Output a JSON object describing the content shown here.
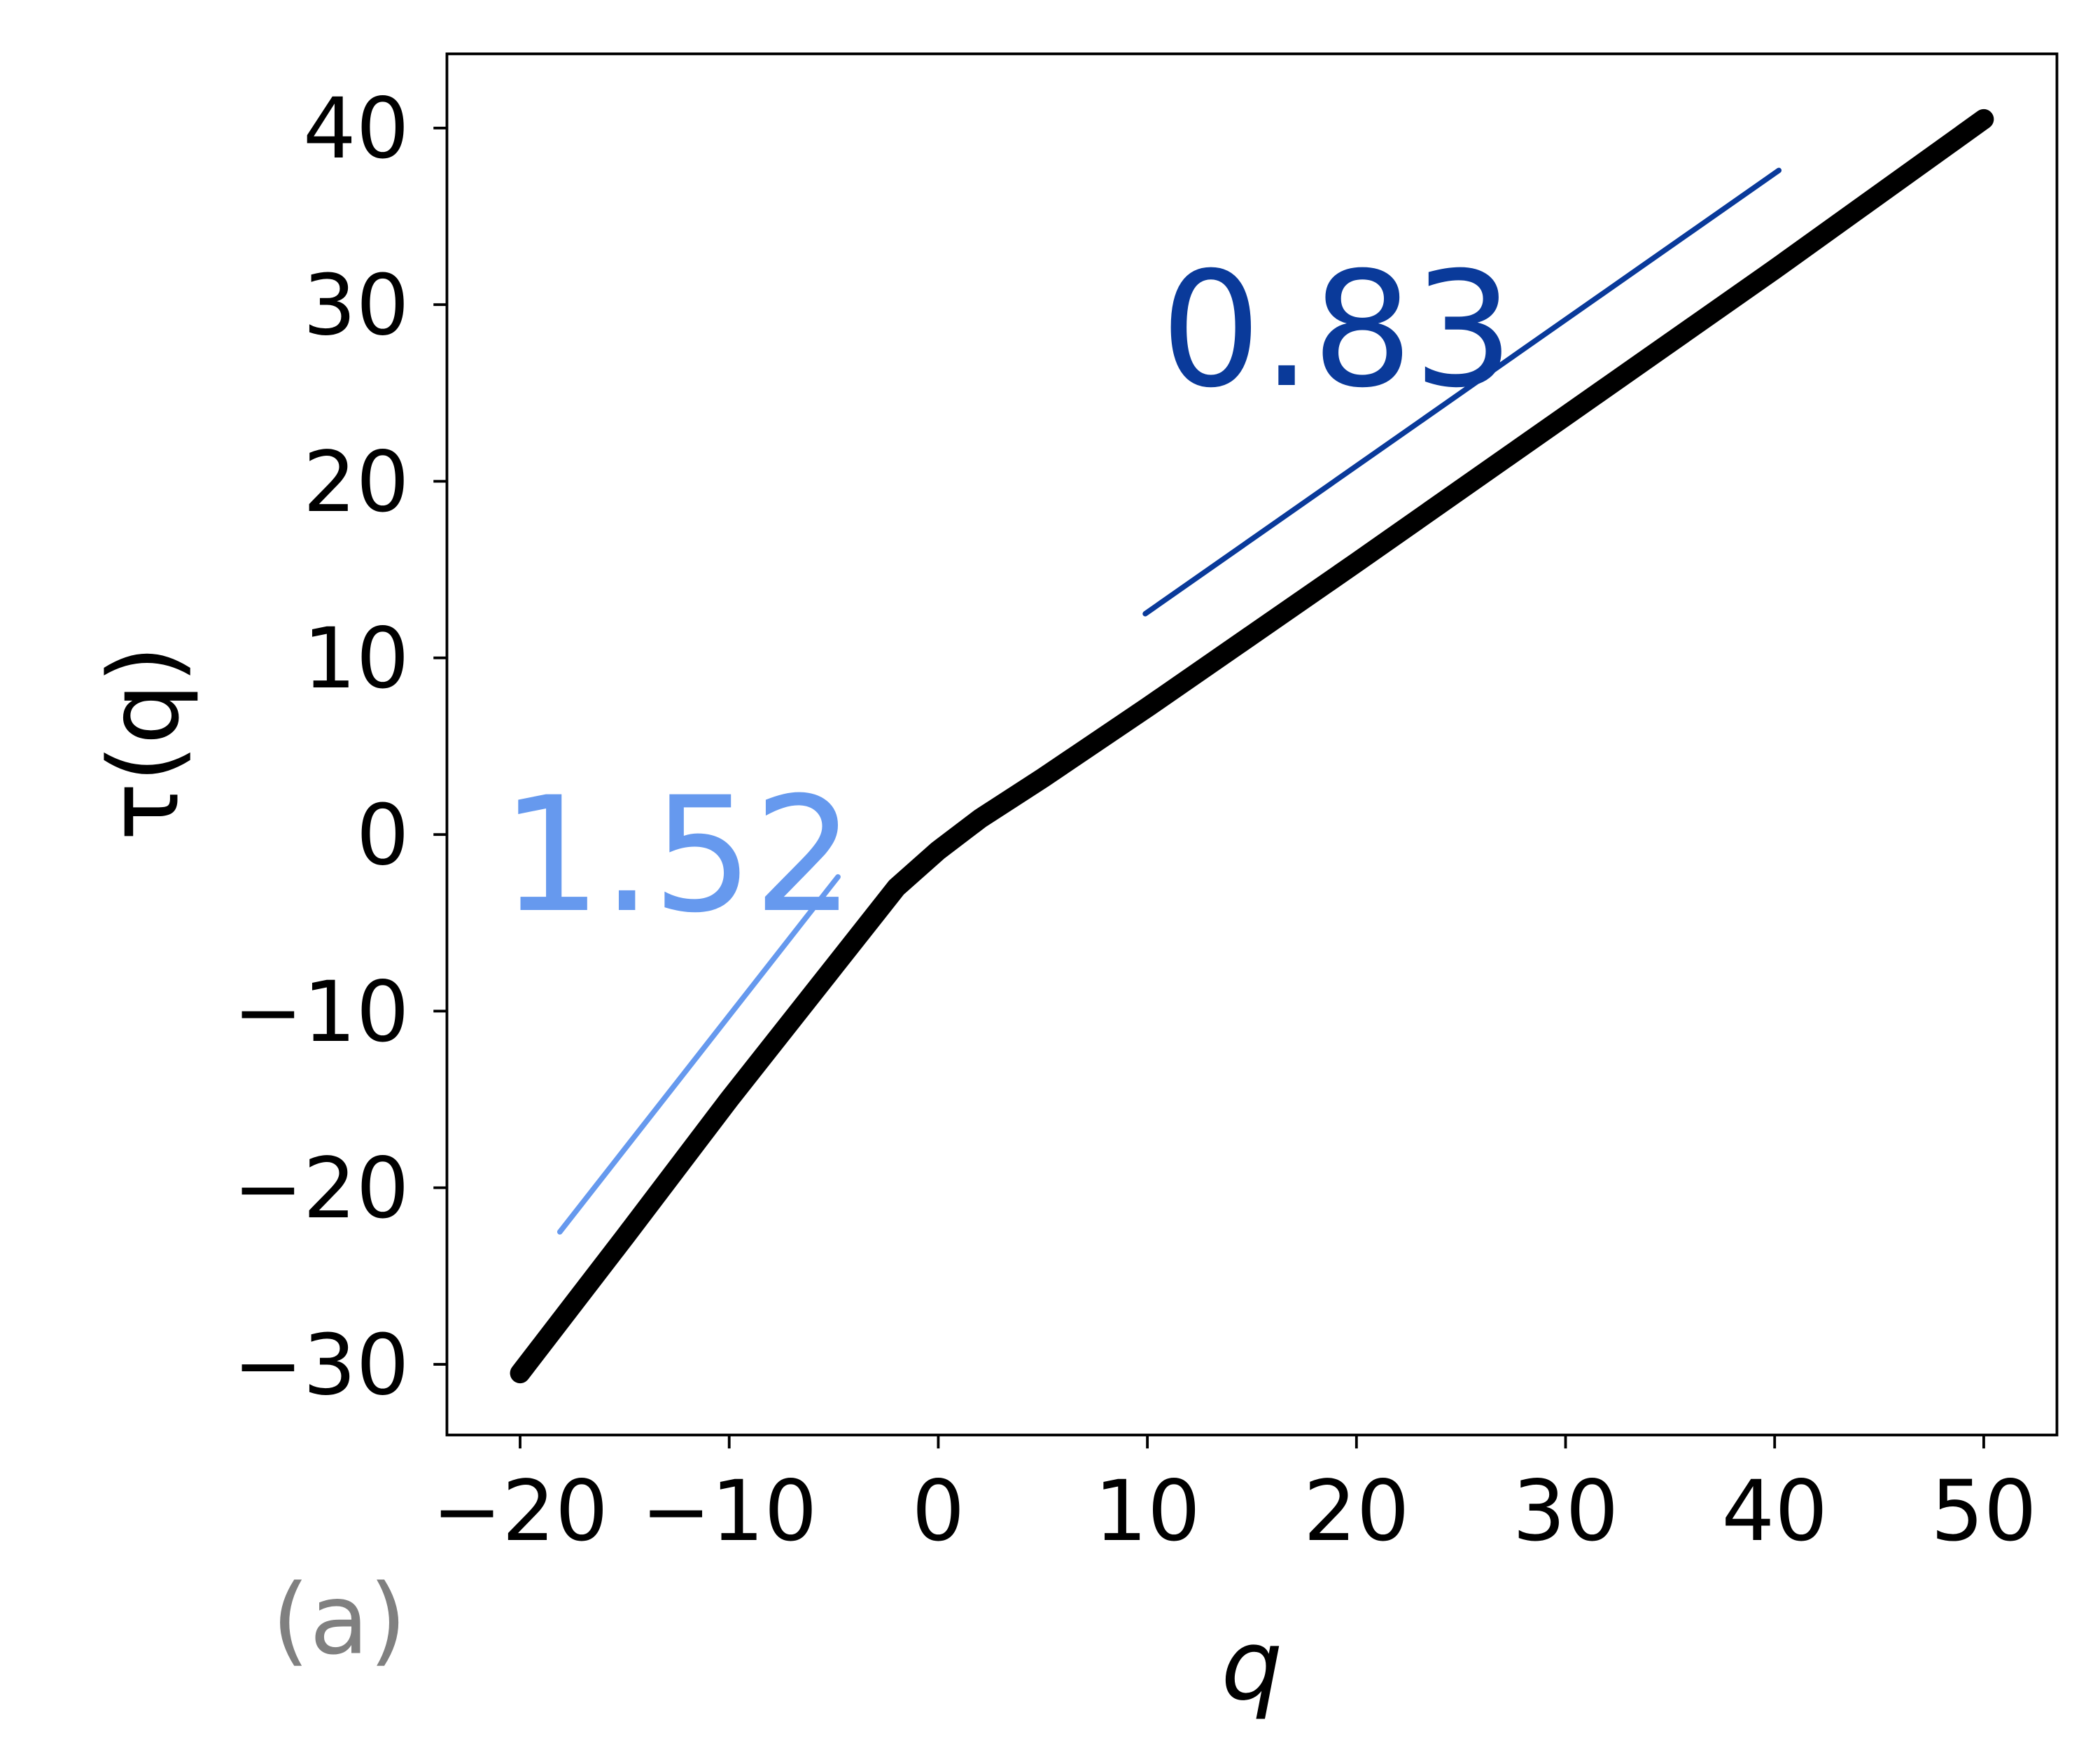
{
  "chart_data": {
    "type": "line",
    "xlabel": "q",
    "ylabel": "τ(q)",
    "panel_label": "(a)",
    "x": [
      -20,
      -15,
      -10,
      -5,
      -2,
      0,
      2,
      5,
      10,
      20,
      30,
      40,
      50
    ],
    "series": [
      {
        "color": "#000000",
        "values": [
          -30.5,
          -22.8,
          -15.0,
          -7.5,
          -3.0,
          -0.9,
          0.9,
          3.2,
          7.2,
          15.4,
          23.7,
          32.0,
          40.5
        ]
      }
    ],
    "guides": [
      {
        "color": "#6699ee",
        "x": [
          -18.1,
          -4.8
        ],
        "values": [
          -22.5,
          -2.4
        ]
      },
      {
        "color": "#0a3a9a",
        "x": [
          9.9,
          40.2
        ],
        "values": [
          12.5,
          37.6
        ]
      }
    ],
    "annotations": [
      {
        "text": "1.52",
        "color": "#6699ee"
      },
      {
        "text": "0.83",
        "color": "#0a3a9a"
      }
    ],
    "xlim": [
      -23.5,
      53.5
    ],
    "ylim": [
      -34.0,
      44.2
    ],
    "xticks": [
      {
        "value": -20,
        "label": "−20"
      },
      {
        "value": -10,
        "label": "−10"
      },
      0,
      10,
      20,
      30,
      40,
      50
    ],
    "yticks": [
      {
        "value": -30,
        "label": "−30"
      },
      {
        "value": -20,
        "label": "−20"
      },
      {
        "value": -10,
        "label": "−10"
      },
      0,
      10,
      20,
      30,
      40
    ],
    "grid": false
  }
}
